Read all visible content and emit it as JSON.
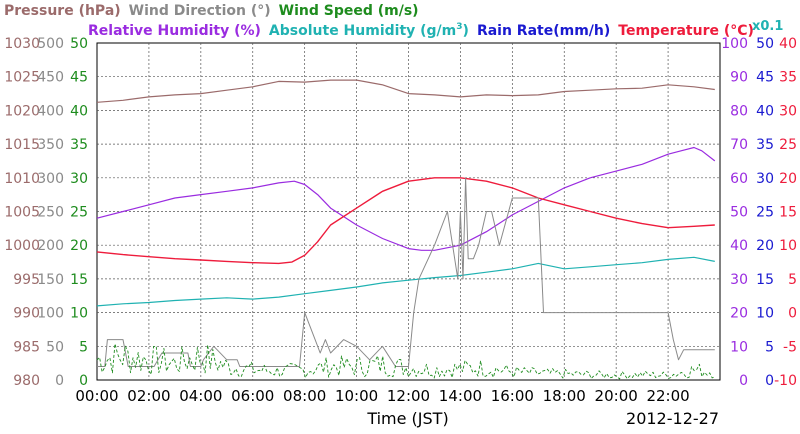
{
  "header": {
    "row1": [
      {
        "text": "Pressure (hPa)",
        "color": "#9b6b6b"
      },
      {
        "text": "Wind Direction (°)",
        "color": "#8a8a8a"
      },
      {
        "text": "Wind Speed (m/s)",
        "color": "#1e8c1e"
      }
    ],
    "row2": [
      {
        "text": "Relative Humidity (%)",
        "color": "#9a2ce0"
      },
      {
        "text": "Absolute Humidity (g/m",
        "sup": "3",
        "tail": ")",
        "color": "#20b2b2"
      },
      {
        "text": "Rain Rate(mm/h)",
        "color": "#1a1ad0"
      },
      {
        "text": "Temperature (°C)",
        "color": "#ee1c3c"
      }
    ],
    "multiplier": {
      "text": "x0.1",
      "color": "#20b2b2"
    }
  },
  "xlabel": "Time (JST)",
  "date": "2012-12-27",
  "chart_data": {
    "type": "line",
    "x_range_hours": [
      0,
      24
    ],
    "x_ticks": [
      "00:00",
      "02:00",
      "04:00",
      "06:00",
      "08:00",
      "10:00",
      "12:00",
      "14:00",
      "16:00",
      "18:00",
      "20:00",
      "22:00"
    ],
    "grid": true,
    "axes": {
      "pressure": {
        "ticks": [
          1030,
          1025,
          1020,
          1015,
          1010,
          1005,
          1000,
          995,
          990,
          985,
          980
        ],
        "range": [
          980,
          1030
        ],
        "color": "#9b6b6b"
      },
      "wind_direction": {
        "ticks": [
          500,
          450,
          400,
          350,
          300,
          250,
          200,
          150,
          100,
          50,
          0
        ],
        "range": [
          0,
          500
        ],
        "color": "#8a8a8a"
      },
      "wind_speed": {
        "ticks": [
          50,
          45,
          40,
          35,
          30,
          25,
          20,
          15,
          10,
          5,
          0
        ],
        "range": [
          0,
          50
        ],
        "color": "#1e8c1e"
      },
      "relative_humidity": {
        "ticks": [
          100,
          90,
          80,
          70,
          60,
          50,
          40,
          30,
          20,
          10,
          0
        ],
        "range": [
          0,
          100
        ],
        "color": "#9a2ce0"
      },
      "rain_rate": {
        "ticks": [
          50,
          45,
          40,
          35,
          30,
          25,
          20,
          15,
          10,
          5,
          0
        ],
        "range": [
          0,
          50
        ],
        "color": "#1a1ad0"
      },
      "temperature": {
        "ticks": [
          40,
          35,
          30,
          25,
          20,
          15,
          10,
          5,
          0,
          -5,
          -10
        ],
        "range": [
          -10,
          40
        ],
        "color": "#ee1c3c"
      }
    },
    "series": [
      {
        "key": "pressure",
        "color": "#9b6b6b",
        "width": 1.2,
        "x": [
          0,
          1,
          2,
          3,
          4,
          5,
          6,
          7,
          8,
          9,
          10,
          11,
          12,
          13,
          14,
          15,
          16,
          17,
          18,
          19,
          20,
          21,
          22,
          23,
          23.8
        ],
        "y": [
          1021.2,
          1021.5,
          1022,
          1022.3,
          1022.5,
          1023,
          1023.5,
          1024.3,
          1024.2,
          1024.5,
          1024.5,
          1023.8,
          1022.5,
          1022.3,
          1022,
          1022.3,
          1022.2,
          1022.3,
          1022.8,
          1023,
          1023.2,
          1023.3,
          1023.8,
          1023.5,
          1023.1
        ]
      },
      {
        "key": "relative_humidity",
        "color": "#9a2ce0",
        "width": 1.2,
        "x": [
          0,
          1,
          2,
          3,
          4,
          5,
          6,
          7,
          7.6,
          8,
          8.5,
          9,
          10,
          11,
          12,
          12.5,
          13,
          14,
          15,
          16,
          17,
          18,
          19,
          20,
          21,
          22,
          22.5,
          23,
          23.3,
          23.8
        ],
        "y": [
          48,
          50,
          52,
          54,
          55,
          56,
          57,
          58.5,
          59,
          58,
          55,
          51,
          46,
          42,
          39,
          38.5,
          38.5,
          40,
          44,
          49,
          53,
          57,
          60,
          62,
          64,
          67,
          68,
          69,
          68,
          65
        ]
      },
      {
        "key": "absolute_humidity",
        "color": "#20b2b2",
        "width": 1.2,
        "x": [
          0,
          1,
          2,
          3,
          4,
          5,
          6,
          7,
          8,
          9,
          10,
          11,
          12,
          13,
          14,
          15,
          16,
          17,
          18,
          19,
          20,
          21,
          22,
          23,
          23.8
        ],
        "y": [
          11,
          11.3,
          11.5,
          11.8,
          12,
          12.2,
          12,
          12.3,
          12.8,
          13.3,
          13.8,
          14.4,
          14.8,
          15.2,
          15.5,
          16,
          16.5,
          17.3,
          16.5,
          16.8,
          17.1,
          17.4,
          17.9,
          18.2,
          17.6
        ]
      },
      {
        "key": "temperature",
        "color": "#ee1c3c",
        "width": 1.4,
        "x": [
          0,
          1,
          2,
          3,
          4,
          5,
          6,
          7,
          7.5,
          8,
          8.5,
          9,
          10,
          11,
          12,
          13,
          14,
          15,
          16,
          17,
          18,
          19,
          20,
          21,
          22,
          23,
          23.8
        ],
        "y": [
          9,
          8.6,
          8.3,
          8,
          7.8,
          7.6,
          7.4,
          7.3,
          7.5,
          8.5,
          10.5,
          13,
          15.5,
          18,
          19.5,
          20,
          20,
          19.5,
          18.5,
          17,
          16,
          15,
          14,
          13.2,
          12.6,
          12.8,
          13
        ]
      },
      {
        "key": "wind_direction",
        "color": "#8a8a8a",
        "width": 1,
        "x": [
          0,
          0.3,
          0.4,
          1,
          1.2,
          2.2,
          2.5,
          3.5,
          3.6,
          4,
          4.1,
          4.5,
          5,
          5.4,
          5.5,
          7.8,
          8,
          8.2,
          8.4,
          8.6,
          8.8,
          9,
          9.5,
          10,
          10.5,
          11,
          11.5,
          12,
          12.2,
          12.4,
          13,
          13.5,
          13.7,
          13.9,
          14,
          14.1,
          14.2,
          14.3,
          14.5,
          14.7,
          15,
          15.2,
          15.5,
          16,
          16.5,
          17,
          17.2,
          18,
          20,
          22,
          22.2,
          22.4,
          22.6,
          23.8
        ],
        "y": [
          20,
          20,
          60,
          60,
          20,
          20,
          40,
          40,
          20,
          20,
          30,
          50,
          30,
          30,
          20,
          20,
          100,
          80,
          60,
          40,
          60,
          40,
          60,
          50,
          30,
          50,
          20,
          20,
          100,
          150,
          200,
          250,
          200,
          150,
          250,
          150,
          300,
          180,
          180,
          200,
          250,
          250,
          200,
          270,
          270,
          270,
          100,
          100,
          100,
          100,
          60,
          30,
          45,
          45
        ]
      },
      {
        "key": "wind_speed",
        "color": "#1e8c1e",
        "width": 0.9,
        "dashed": true,
        "noisy": true,
        "x": [
          0,
          1,
          2,
          3,
          4,
          5,
          6,
          7,
          8,
          9,
          10,
          11,
          12,
          13,
          14,
          15,
          16,
          17,
          18,
          19,
          20,
          21,
          22,
          23,
          23.8
        ],
        "y": [
          3,
          3.5,
          3,
          2.5,
          3.5,
          2,
          1.5,
          1.3,
          1.5,
          2,
          2,
          2.3,
          1.8,
          1.5,
          1.7,
          1.8,
          1.2,
          1,
          0.9,
          0.8,
          0.7,
          0.8,
          0.7,
          1.5,
          1.2
        ]
      }
    ]
  }
}
